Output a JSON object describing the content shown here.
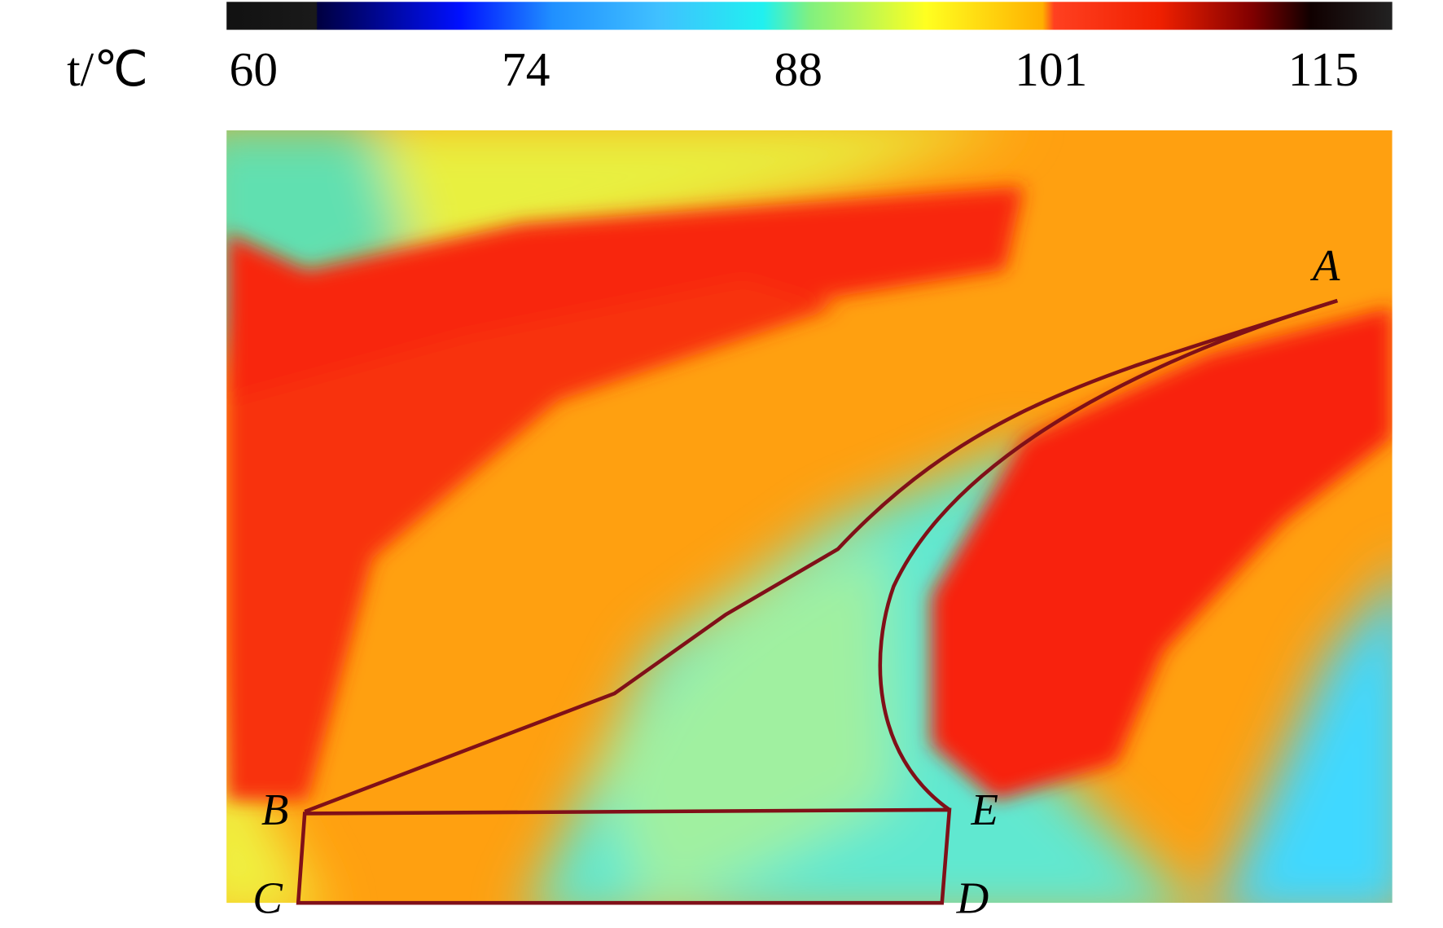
{
  "colorbar": {
    "label": "t/℃",
    "ticks": [
      60,
      74,
      88,
      101,
      115
    ]
  },
  "points": {
    "A": "A",
    "B": "B",
    "C": "C",
    "D": "D",
    "E": "E"
  }
}
